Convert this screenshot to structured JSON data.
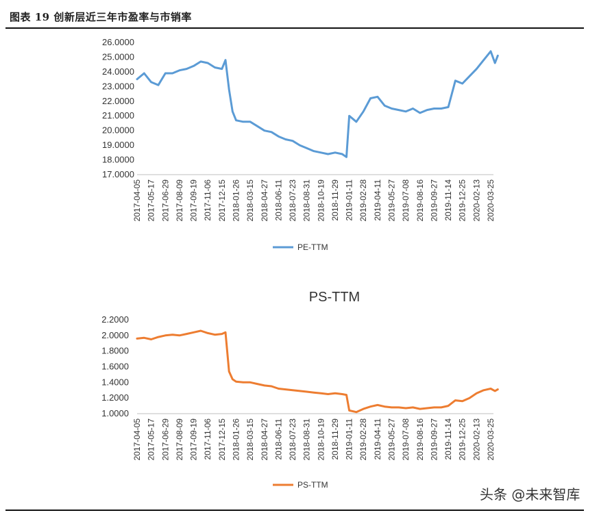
{
  "figure_title": "图表 19 创新层近三年市盈率与市销率",
  "watermark": "头条 @未来智库",
  "colors": {
    "pe_line": "#5B9BD5",
    "ps_line": "#ED7D31",
    "axis": "#bfbfbf"
  },
  "chart_data": [
    {
      "type": "line",
      "title": "",
      "xlabel": "",
      "ylabel": "",
      "ylim": [
        17,
        26
      ],
      "yticks": [
        "17.0000",
        "18.0000",
        "19.0000",
        "20.0000",
        "21.0000",
        "22.0000",
        "23.0000",
        "24.0000",
        "25.0000",
        "26.0000"
      ],
      "xticks": [
        "2017-04-05",
        "2017-05-17",
        "2017-06-29",
        "2017-08-09",
        "2017-09-19",
        "2017-11-06",
        "2017-12-15",
        "2018-01-26",
        "2018-03-15",
        "2018-04-27",
        "2018-06-11",
        "2018-07-23",
        "2018-08-31",
        "2018-10-19",
        "2018-11-29",
        "2019-01-11",
        "2019-02-28",
        "2019-04-11",
        "2019-05-27",
        "2019-07-08",
        "2019-08-16",
        "2019-09-27",
        "2019-11-14",
        "2019-12-25",
        "2020-02-13",
        "2020-03-25"
      ],
      "legend": "bottom",
      "series": [
        {
          "name": "PE-TTM",
          "x": [
            0,
            0.5,
            1,
            1.5,
            2,
            2.5,
            3,
            3.5,
            4,
            4.5,
            5,
            5.5,
            6,
            6.25,
            6.5,
            6.75,
            7,
            7.5,
            8,
            8.5,
            9,
            9.5,
            10,
            10.5,
            11,
            11.5,
            12,
            12.5,
            13,
            13.5,
            14,
            14.5,
            14.8,
            15,
            15.5,
            16,
            16.5,
            17,
            17.5,
            18,
            18.5,
            19,
            19.5,
            20,
            20.5,
            21,
            21.5,
            22,
            22.5,
            23,
            23.5,
            24,
            24.5,
            25,
            25.3,
            25.5
          ],
          "values": [
            23.5,
            23.9,
            23.3,
            23.1,
            23.9,
            23.9,
            24.1,
            24.2,
            24.4,
            24.7,
            24.6,
            24.3,
            24.2,
            24.8,
            22.8,
            21.3,
            20.7,
            20.6,
            20.6,
            20.3,
            20.0,
            19.9,
            19.6,
            19.4,
            19.3,
            19.0,
            18.8,
            18.6,
            18.5,
            18.4,
            18.5,
            18.4,
            18.2,
            21.0,
            20.6,
            21.3,
            22.2,
            22.3,
            21.7,
            21.5,
            21.4,
            21.3,
            21.5,
            21.2,
            21.4,
            21.5,
            21.5,
            21.6,
            23.4,
            23.2,
            23.7,
            24.2,
            24.8,
            25.4,
            24.6,
            25.1
          ]
        }
      ]
    },
    {
      "type": "line",
      "title": "PS-TTM",
      "xlabel": "",
      "ylabel": "",
      "ylim": [
        1.0,
        2.2
      ],
      "yticks": [
        "1.0000",
        "1.2000",
        "1.4000",
        "1.6000",
        "1.8000",
        "2.0000",
        "2.2000"
      ],
      "xticks": [
        "2017-04-05",
        "2017-05-17",
        "2017-06-29",
        "2017-08-09",
        "2017-09-19",
        "2017-11-06",
        "2017-12-15",
        "2018-01-26",
        "2018-03-15",
        "2018-04-27",
        "2018-06-11",
        "2018-07-23",
        "2018-08-31",
        "2018-10-19",
        "2018-11-29",
        "2019-01-11",
        "2019-02-28",
        "2019-04-11",
        "2019-05-27",
        "2019-07-08",
        "2019-08-16",
        "2019-09-27",
        "2019-11-14",
        "2019-12-25",
        "2020-02-13",
        "2020-03-25"
      ],
      "legend": "bottom",
      "series": [
        {
          "name": "PS-TTM",
          "x": [
            0,
            0.5,
            1,
            1.5,
            2,
            2.5,
            3,
            3.5,
            4,
            4.5,
            5,
            5.5,
            6,
            6.25,
            6.5,
            6.75,
            7,
            7.5,
            8,
            8.5,
            9,
            9.5,
            10,
            10.5,
            11,
            11.5,
            12,
            12.5,
            13,
            13.5,
            14,
            14.5,
            14.8,
            15,
            15.5,
            16,
            16.5,
            17,
            17.5,
            18,
            18.5,
            19,
            19.5,
            20,
            20.5,
            21,
            21.5,
            22,
            22.5,
            23,
            23.5,
            24,
            24.5,
            25,
            25.3,
            25.5
          ],
          "values": [
            1.96,
            1.97,
            1.95,
            1.98,
            2.0,
            2.01,
            2.0,
            2.02,
            2.04,
            2.06,
            2.03,
            2.01,
            2.02,
            2.04,
            1.54,
            1.44,
            1.41,
            1.4,
            1.4,
            1.38,
            1.36,
            1.35,
            1.32,
            1.31,
            1.3,
            1.29,
            1.28,
            1.27,
            1.26,
            1.25,
            1.26,
            1.25,
            1.24,
            1.04,
            1.02,
            1.06,
            1.09,
            1.11,
            1.09,
            1.08,
            1.08,
            1.07,
            1.08,
            1.06,
            1.07,
            1.08,
            1.08,
            1.1,
            1.17,
            1.16,
            1.2,
            1.26,
            1.3,
            1.32,
            1.29,
            1.31
          ]
        }
      ]
    }
  ]
}
